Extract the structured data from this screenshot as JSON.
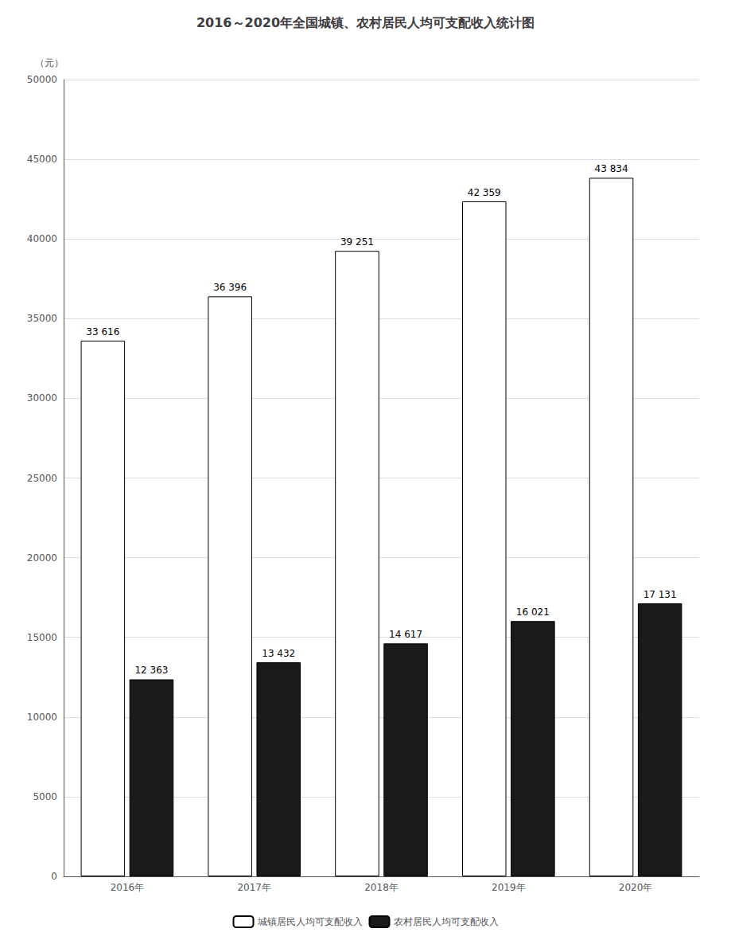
{
  "chart_data": {
    "type": "bar",
    "title": "2016～2020年全国城镇、农村居民人均可支配收入统计图",
    "ylabel": "（元）",
    "categories": [
      "2016年",
      "2017年",
      "2018年",
      "2019年",
      "2020年"
    ],
    "series": [
      {
        "name": "城镇居民人均可支配收入",
        "color": "#ffffff",
        "values": [
          33616,
          36396,
          39251,
          42359,
          43834
        ],
        "value_labels": [
          "33 616",
          "36 396",
          "39 251",
          "42 359",
          "43 834"
        ]
      },
      {
        "name": "农村居民人均可支配收入",
        "color": "#1a1a1a",
        "values": [
          12363,
          13432,
          14617,
          16021,
          17131
        ],
        "value_labels": [
          "12 363",
          "13 432",
          "14 617",
          "16 021",
          "17 131"
        ]
      }
    ],
    "ylim": [
      0,
      50000
    ],
    "yticks": [
      0,
      5000,
      10000,
      15000,
      20000,
      25000,
      30000,
      35000,
      40000,
      45000,
      50000
    ],
    "grid": true,
    "data_labels": true,
    "legend": "bottom"
  }
}
